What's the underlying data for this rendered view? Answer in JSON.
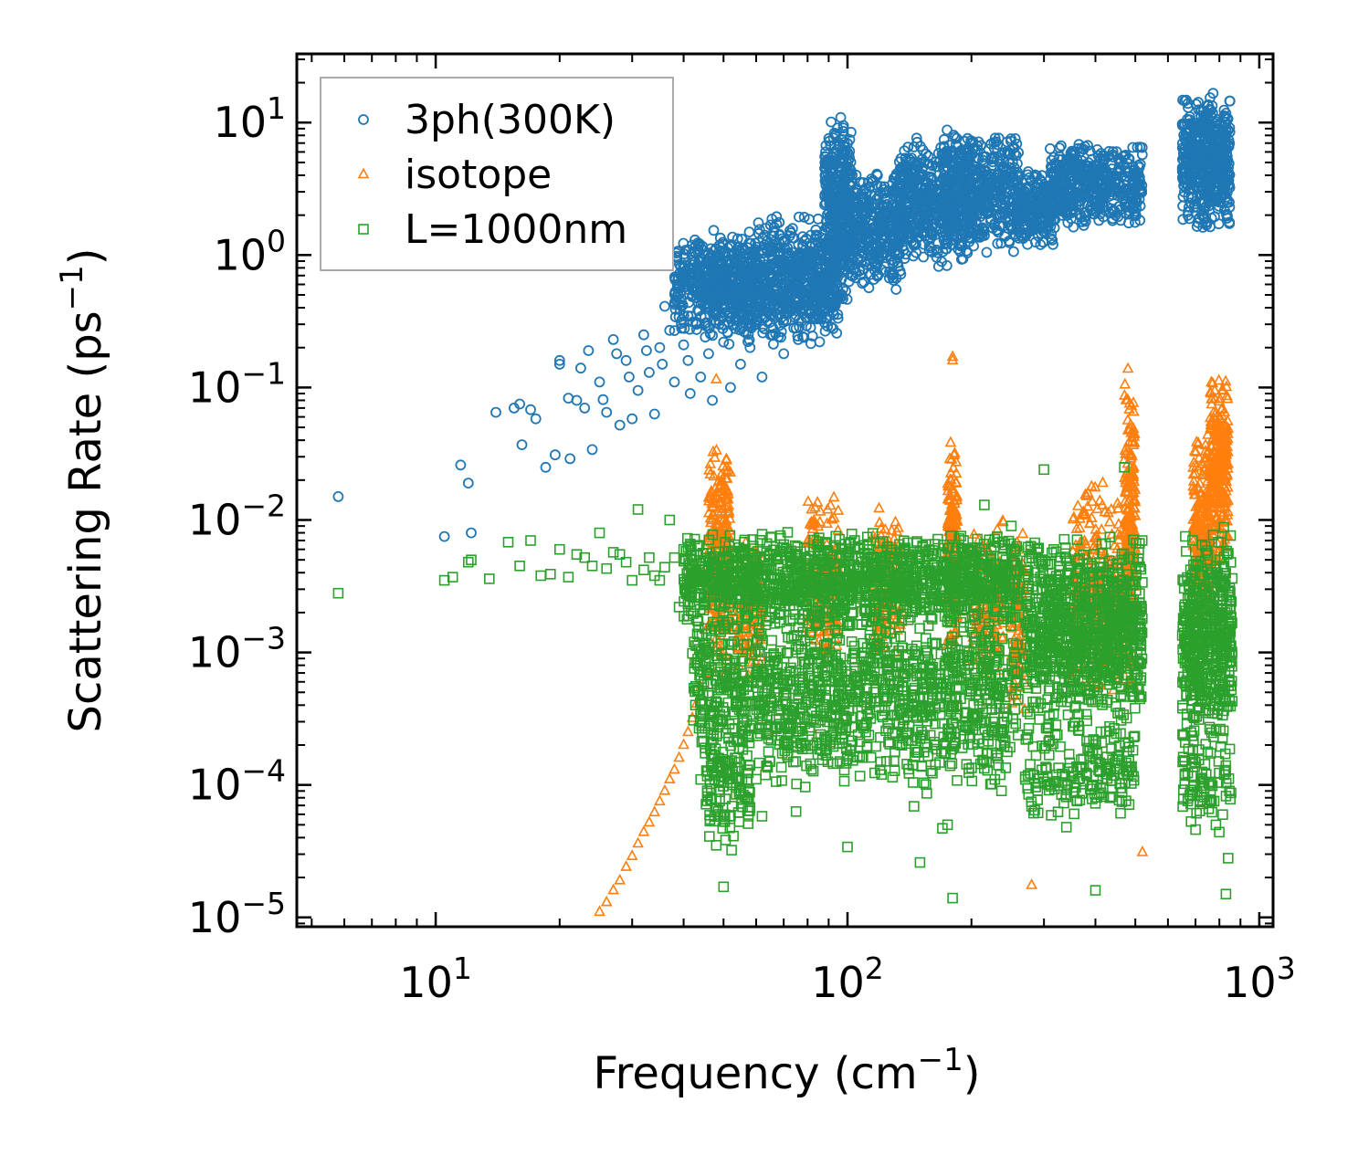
{
  "chart_data": {
    "type": "scatter",
    "xscale": "log",
    "yscale": "log",
    "xlim": [
      4.6,
      1080
    ],
    "ylim": [
      8.5e-06,
      33
    ],
    "xlabel": {
      "main": "Frequency (cm",
      "sup": "−1",
      "end": ")"
    },
    "ylabel": {
      "main": "Scattering Rate (ps",
      "sup": "−1",
      "end": ")"
    },
    "xticks": [
      {
        "value": 10,
        "base": "10",
        "exp": "1"
      },
      {
        "value": 100,
        "base": "10",
        "exp": "2"
      },
      {
        "value": 1000,
        "base": "10",
        "exp": "3"
      }
    ],
    "yticks": [
      {
        "value": 1e-05,
        "base": "10",
        "exp": "−5"
      },
      {
        "value": 0.0001,
        "base": "10",
        "exp": "−4"
      },
      {
        "value": 0.001,
        "base": "10",
        "exp": "−3"
      },
      {
        "value": 0.01,
        "base": "10",
        "exp": "−2"
      },
      {
        "value": 0.1,
        "base": "10",
        "exp": "−1"
      },
      {
        "value": 1,
        "base": "10",
        "exp": "0"
      },
      {
        "value": 10,
        "base": "10",
        "exp": "1"
      }
    ],
    "legend": {
      "location": "upper-left"
    },
    "series": [
      {
        "name": "3ph(300K)",
        "marker": "circle",
        "color": "#1f77b4",
        "points": [
          [
            5.8,
            0.015
          ],
          [
            10.5,
            0.0075
          ],
          [
            11.5,
            0.026
          ],
          [
            12,
            0.019
          ],
          [
            12.2,
            0.008
          ],
          [
            14,
            0.065
          ],
          [
            15.5,
            0.07
          ],
          [
            16,
            0.075
          ],
          [
            16.2,
            0.037
          ],
          [
            17,
            0.068
          ],
          [
            17.5,
            0.058
          ],
          [
            18.5,
            0.025
          ],
          [
            19.5,
            0.031
          ],
          [
            20,
            0.15
          ],
          [
            20,
            0.16
          ],
          [
            21,
            0.083
          ],
          [
            21.2,
            0.029
          ],
          [
            22,
            0.08
          ],
          [
            22.5,
            0.14
          ],
          [
            23,
            0.07
          ],
          [
            23.5,
            0.19
          ],
          [
            24,
            0.034
          ],
          [
            25,
            0.11
          ],
          [
            25.5,
            0.081
          ],
          [
            26,
            0.065
          ],
          [
            27,
            0.23
          ],
          [
            27.5,
            0.18
          ],
          [
            28,
            0.052
          ],
          [
            29,
            0.16
          ],
          [
            29.5,
            0.12
          ],
          [
            30,
            0.058
          ],
          [
            31,
            0.095
          ],
          [
            32,
            0.25
          ],
          [
            32.5,
            0.19
          ],
          [
            33,
            0.13
          ],
          [
            34,
            0.063
          ],
          [
            35,
            0.2
          ],
          [
            35.5,
            0.15
          ],
          [
            36,
            0.41
          ],
          [
            37,
            0.27
          ],
          [
            38,
            0.11
          ],
          [
            39,
            0.34
          ],
          [
            40,
            0.21
          ],
          [
            41,
            0.16
          ],
          [
            41.5,
            0.09
          ],
          [
            42,
            0.55
          ],
          [
            43,
            0.3
          ],
          [
            44,
            0.12
          ],
          [
            45,
            0.42
          ],
          [
            46,
            0.18
          ],
          [
            47,
            0.08
          ],
          [
            48,
            0.35
          ],
          [
            50,
            0.22
          ],
          [
            52,
            0.1
          ],
          [
            55,
            0.15
          ],
          [
            58,
            0.2
          ],
          [
            60,
            0.3
          ],
          [
            62,
            0.12
          ],
          [
            65,
            0.25
          ],
          [
            70,
            0.18
          ],
          [
            75,
            0.28
          ]
        ],
        "bands": [
          {
            "x": [
              38,
              60
            ],
            "y": [
              0.25,
              1.6
            ],
            "n": 420
          },
          {
            "x": [
              45,
              95
            ],
            "y": [
              0.2,
              1.3
            ],
            "n": 520
          },
          {
            "x": [
              60,
              100
            ],
            "y": [
              0.3,
              2.2
            ],
            "n": 320
          },
          {
            "x": [
              88,
              102
            ],
            "y": [
              0.6,
              12.5
            ],
            "n": 320
          },
          {
            "x": [
              100,
              135
            ],
            "y": [
              0.5,
              4.5
            ],
            "n": 360
          },
          {
            "x": [
              130,
              200
            ],
            "y": [
              0.8,
              8
            ],
            "n": 500
          },
          {
            "x": [
              170,
              260
            ],
            "y": [
              1.0,
              9
            ],
            "n": 480
          },
          {
            "x": [
              260,
              320
            ],
            "y": [
              1.1,
              4.5
            ],
            "n": 220
          },
          {
            "x": [
              310,
              520
            ],
            "y": [
              1.5,
              7.5
            ],
            "n": 480
          },
          {
            "x": [
              650,
              850
            ],
            "y": [
              1.5,
              17.5
            ],
            "n": 520
          }
        ]
      },
      {
        "name": "isotope",
        "marker": "triangle",
        "color": "#ff7f0e",
        "points": [
          [
            25,
            1.1e-05
          ],
          [
            26,
            1.3e-05
          ],
          [
            27,
            1.6e-05
          ],
          [
            28,
            1.9e-05
          ],
          [
            29,
            2.4e-05
          ],
          [
            30,
            2.9e-05
          ],
          [
            31,
            3.6e-05
          ],
          [
            32,
            4.4e-05
          ],
          [
            33,
            5.2e-05
          ],
          [
            34,
            6.2e-05
          ],
          [
            35,
            7.5e-05
          ],
          [
            36,
            9e-05
          ],
          [
            37,
            0.00011
          ],
          [
            38,
            0.00013
          ],
          [
            39,
            0.00016
          ],
          [
            40,
            0.0002
          ],
          [
            41,
            0.00025
          ],
          [
            42,
            0.00032
          ],
          [
            43,
            0.00041
          ],
          [
            44,
            0.00055
          ],
          [
            46,
            0.0007
          ],
          [
            48,
            0.115
          ],
          [
            180,
            0.17
          ],
          [
            180,
            0.16
          ],
          [
            280,
            1.75e-05
          ],
          [
            520,
            3.1e-05
          ]
        ],
        "bands": [
          {
            "x": [
              46,
              52
            ],
            "y": [
              0.0006,
              0.042
            ],
            "n": 260
          },
          {
            "x": [
              54,
              62
            ],
            "y": [
              0.0006,
              0.008
            ],
            "n": 120
          },
          {
            "x": [
              80,
              95
            ],
            "y": [
              0.0008,
              0.016
            ],
            "n": 160
          },
          {
            "x": [
              115,
              135
            ],
            "y": [
              0.0008,
              0.013
            ],
            "n": 160
          },
          {
            "x": [
              175,
              185
            ],
            "y": [
              0.0008,
              0.05
            ],
            "n": 200
          },
          {
            "x": [
              200,
              240
            ],
            "y": [
              0.0006,
              0.01
            ],
            "n": 140
          },
          {
            "x": [
              250,
              270
            ],
            "y": [
              0.0003,
              0.01
            ],
            "n": 100
          },
          {
            "x": [
              350,
              460
            ],
            "y": [
              0.0004,
              0.022
            ],
            "n": 260
          },
          {
            "x": [
              470,
              500
            ],
            "y": [
              0.0004,
              0.15
            ],
            "n": 260
          },
          {
            "x": [
              690,
              760
            ],
            "y": [
              0.0015,
              0.045
            ],
            "n": 220
          },
          {
            "x": [
              760,
              840
            ],
            "y": [
              0.004,
              0.14
            ],
            "n": 260
          }
        ]
      },
      {
        "name": "L=1000nm",
        "marker": "square",
        "color": "#2ca02c",
        "points": [
          [
            5.8,
            0.0028
          ],
          [
            10.5,
            0.0035
          ],
          [
            11,
            0.0037
          ],
          [
            12,
            0.0048
          ],
          [
            12.2,
            0.005
          ],
          [
            13.5,
            0.0036
          ],
          [
            15,
            0.0068
          ],
          [
            16,
            0.0045
          ],
          [
            17,
            0.007
          ],
          [
            18,
            0.0038
          ],
          [
            19,
            0.0039
          ],
          [
            20,
            0.006
          ],
          [
            21,
            0.0037
          ],
          [
            22,
            0.0055
          ],
          [
            23,
            0.0052
          ],
          [
            24,
            0.0045
          ],
          [
            25,
            0.008
          ],
          [
            26,
            0.0043
          ],
          [
            27,
            0.0057
          ],
          [
            28,
            0.0055
          ],
          [
            29,
            0.0048
          ],
          [
            30,
            0.0035
          ],
          [
            31,
            0.012
          ],
          [
            32,
            0.0042
          ],
          [
            33,
            0.0052
          ],
          [
            34,
            0.0038
          ],
          [
            35,
            0.0035
          ],
          [
            36,
            0.0044
          ],
          [
            37,
            0.01
          ],
          [
            38,
            0.0052
          ],
          [
            39,
            0.0022
          ],
          [
            40,
            0.006
          ],
          [
            44,
            0.00011
          ],
          [
            48,
            3.5e-05
          ],
          [
            50,
            1.7e-05
          ],
          [
            52,
            5.8e-05
          ],
          [
            62,
            5.8e-05
          ],
          [
            75,
            6.3e-05
          ],
          [
            100,
            3.4e-05
          ],
          [
            120,
            0.00013
          ],
          [
            145,
            6.9e-05
          ],
          [
            150,
            2.6e-05
          ],
          [
            170,
            4.7e-05
          ],
          [
            175,
            5e-05
          ],
          [
            180,
            1.4e-05
          ],
          [
            215,
            0.013
          ],
          [
            250,
            0.009
          ],
          [
            280,
            6.9e-05
          ],
          [
            300,
            0.024
          ],
          [
            340,
            4.8e-05
          ],
          [
            400,
            1.6e-05
          ],
          [
            470,
            0.025
          ],
          [
            700,
            4.6e-05
          ],
          [
            830,
            1.5e-05
          ],
          [
            840,
            2.8e-05
          ]
        ],
        "bands": [
          {
            "x": [
              40,
              260
            ],
            "y": [
              0.0015,
              0.0085
            ],
            "n": 1400
          },
          {
            "x": [
              42,
              260
            ],
            "y": [
              0.0002,
              0.002
            ],
            "n": 900
          },
          {
            "x": [
              45,
              58
            ],
            "y": [
              3e-05,
              0.0005
            ],
            "n": 160
          },
          {
            "x": [
              60,
              250
            ],
            "y": [
              8e-05,
              0.0006
            ],
            "n": 320
          },
          {
            "x": [
              270,
              520
            ],
            "y": [
              0.0003,
              0.008
            ],
            "n": 900
          },
          {
            "x": [
              270,
              500
            ],
            "y": [
              5e-05,
              0.0004
            ],
            "n": 200
          },
          {
            "x": [
              650,
              860
            ],
            "y": [
              0.0002,
              0.009
            ],
            "n": 500
          },
          {
            "x": [
              650,
              860
            ],
            "y": [
              4e-05,
              0.0003
            ],
            "n": 90
          }
        ]
      }
    ]
  }
}
